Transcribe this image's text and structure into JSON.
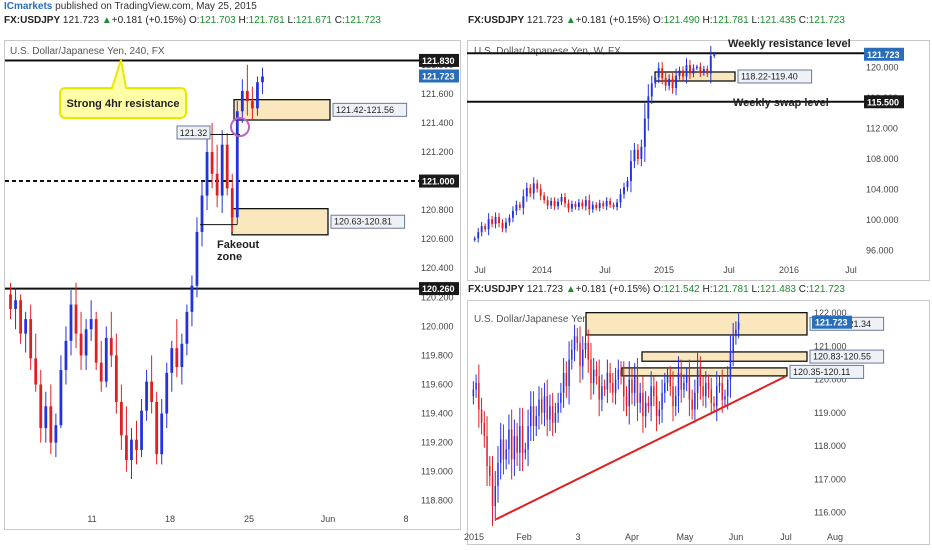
{
  "header": {
    "brand": "ICmarkets",
    "published": " published on TradingView.com, May 25, 2015"
  },
  "panels": {
    "h4": {
      "symbol": "FX:USDJPY",
      "last": "121.723",
      "change": "+0.181 (+0.15%)",
      "o_label": "O:",
      "o": "121.703",
      "h_label": "H:",
      "h": "121.781",
      "l_label": "L:",
      "l": "121.671",
      "c_label": "C:",
      "c": "121.723",
      "title": "U.S. Dollar/Japanese Yen, 240, FX"
    },
    "weekly": {
      "symbol": "FX:USDJPY",
      "last": "121.723",
      "change": "+0.181 (+0.15%)",
      "o_label": "O:",
      "o": "121.490",
      "h_label": "H:",
      "h": "121.781",
      "l_label": "L:",
      "l": "121.435",
      "c_label": "C:",
      "c": "121.723",
      "title": "U.S. Dollar/Japanese Yen, W, FX"
    },
    "daily": {
      "symbol": "FX:USDJPY",
      "last": "121.723",
      "change": "+0.181 (+0.15%)",
      "o_label": "O:",
      "o": "121.542",
      "h_label": "H:",
      "h": "121.781",
      "l_label": "L:",
      "l": "121.483",
      "c_label": "C:",
      "c": "121.723",
      "title": "U.S. Dollar/Japanese Yen, D, FX"
    }
  },
  "colors": {
    "bull": "#2233dd",
    "bear": "#e02020",
    "zone_fill": "#fbe7bd",
    "callout_fill": "#ffffa8",
    "callout_border": "#e8e800",
    "trendline": "#e02020",
    "last_price_badge": "#2a6ebb",
    "level_badge": "#1a1a1a"
  },
  "chart_data": [
    {
      "id": "h4",
      "type": "candlestick",
      "title": "U.S. Dollar/Japanese Yen, 240, FX",
      "ylim": [
        118.75,
        121.95
      ],
      "y_ticks": [
        "121.800",
        "121.600",
        "121.400",
        "121.200",
        "121.000",
        "120.800",
        "120.600",
        "120.400",
        "120.200",
        "120.000",
        "119.800",
        "119.600",
        "119.400",
        "119.200",
        "119.000",
        "118.800"
      ],
      "x_ticks": [
        "11",
        "18",
        "25",
        "Jun",
        "8"
      ],
      "price_badges": [
        {
          "label": "121.830",
          "value": 121.83,
          "kind": "level"
        },
        {
          "label": "121.723",
          "value": 121.723,
          "kind": "last"
        },
        {
          "label": "121.000",
          "value": 121.0,
          "kind": "level"
        },
        {
          "label": "120.260",
          "value": 120.26,
          "kind": "level"
        }
      ],
      "levels": [
        {
          "value": 121.83,
          "style": "solid"
        },
        {
          "value": 121.0,
          "style": "dashed"
        },
        {
          "value": 120.26,
          "style": "solid"
        }
      ],
      "zones": [
        {
          "label": "121.42-121.56",
          "low": 121.42,
          "high": 121.56
        },
        {
          "label": "120.63-120.81",
          "low": 120.63,
          "high": 120.81
        }
      ],
      "annotations": {
        "callout": "Strong 4hr resistance",
        "fakeout_line1": "Fakeout",
        "fakeout_line2": "zone",
        "price_tag": "121.32"
      },
      "series": {
        "candles_ohlc": [
          [
            120.22,
            120.3,
            120.05,
            120.12
          ],
          [
            120.12,
            120.26,
            119.98,
            120.18
          ],
          [
            120.18,
            120.22,
            119.88,
            119.95
          ],
          [
            119.95,
            120.1,
            119.82,
            120.05
          ],
          [
            120.05,
            120.15,
            119.7,
            119.78
          ],
          [
            119.78,
            119.95,
            119.55,
            119.6
          ],
          [
            119.6,
            119.7,
            119.2,
            119.3
          ],
          [
            119.3,
            119.55,
            119.2,
            119.45
          ],
          [
            119.45,
            119.6,
            119.12,
            119.2
          ],
          [
            119.2,
            119.4,
            119.1,
            119.32
          ],
          [
            119.32,
            119.8,
            119.3,
            119.7
          ],
          [
            119.7,
            120.0,
            119.6,
            119.9
          ],
          [
            119.9,
            120.25,
            119.8,
            120.15
          ],
          [
            120.15,
            120.3,
            119.85,
            119.95
          ],
          [
            119.95,
            120.1,
            119.7,
            119.8
          ],
          [
            119.8,
            120.05,
            119.7,
            119.98
          ],
          [
            119.98,
            120.18,
            119.9,
            120.05
          ],
          [
            120.05,
            120.1,
            119.7,
            119.75
          ],
          [
            119.75,
            119.9,
            119.55,
            119.62
          ],
          [
            119.62,
            120.0,
            119.58,
            119.92
          ],
          [
            119.92,
            120.1,
            119.72,
            119.8
          ],
          [
            119.8,
            119.95,
            119.4,
            119.48
          ],
          [
            119.48,
            119.6,
            119.15,
            119.25
          ],
          [
            119.25,
            119.45,
            119.0,
            119.08
          ],
          [
            119.08,
            119.3,
            118.95,
            119.22
          ],
          [
            119.22,
            119.35,
            119.05,
            119.15
          ],
          [
            119.15,
            119.5,
            119.1,
            119.42
          ],
          [
            119.42,
            119.7,
            119.35,
            119.62
          ],
          [
            119.62,
            119.8,
            119.4,
            119.48
          ],
          [
            119.48,
            119.55,
            119.05,
            119.12
          ],
          [
            119.12,
            119.5,
            119.05,
            119.4
          ],
          [
            119.4,
            119.75,
            119.3,
            119.68
          ],
          [
            119.68,
            119.9,
            119.55,
            119.85
          ],
          [
            119.85,
            120.05,
            119.65,
            119.72
          ],
          [
            119.72,
            119.95,
            119.6,
            119.88
          ],
          [
            119.88,
            120.15,
            119.8,
            120.1
          ],
          [
            120.1,
            120.35,
            120.0,
            120.28
          ],
          [
            120.28,
            120.75,
            120.2,
            120.65
          ],
          [
            120.65,
            121.0,
            120.55,
            120.9
          ],
          [
            120.9,
            121.3,
            120.8,
            121.2
          ],
          [
            121.2,
            121.4,
            120.95,
            121.05
          ],
          [
            121.05,
            121.25,
            120.82,
            120.9
          ],
          [
            120.9,
            121.35,
            120.78,
            121.25
          ],
          [
            121.25,
            121.33,
            120.9,
            120.95
          ],
          [
            120.95,
            121.05,
            120.65,
            120.75
          ],
          [
            120.75,
            121.55,
            120.7,
            121.48
          ],
          [
            121.48,
            121.7,
            121.4,
            121.62
          ],
          [
            121.62,
            121.8,
            121.45,
            121.55
          ],
          [
            121.55,
            121.65,
            121.42,
            121.5
          ],
          [
            121.5,
            121.72,
            121.45,
            121.68
          ],
          [
            121.68,
            121.78,
            121.6,
            121.72
          ]
        ]
      }
    },
    {
      "id": "weekly",
      "type": "candlestick",
      "title": "U.S. Dollar/Japanese Yen, W, FX",
      "ylim": [
        94.5,
        123.2
      ],
      "y_ticks": [
        "120.000",
        "116.000",
        "112.000",
        "108.000",
        "104.000",
        "100.000",
        "96.000"
      ],
      "x_ticks": [
        "Jul",
        "2014",
        "Jul",
        "2015",
        "Jul",
        "2016",
        "Jul"
      ],
      "price_badges": [
        {
          "label": "121.723",
          "value": 121.723,
          "kind": "last"
        },
        {
          "label": "115.500",
          "value": 115.5,
          "kind": "level"
        }
      ],
      "levels": [
        {
          "value": 121.85,
          "style": "solid",
          "label": "Weekly resistance level"
        },
        {
          "value": 115.5,
          "style": "solid",
          "label": "Weekly swap level"
        }
      ],
      "zones": [
        {
          "label": "118.22-119.40",
          "low": 118.22,
          "high": 119.4
        }
      ],
      "series": {
        "closes": [
          97.6,
          98.4,
          99.2,
          98.8,
          100.1,
          99.5,
          100.4,
          99.6,
          98.9,
          99.7,
          100.3,
          101.2,
          102.0,
          101.6,
          103.1,
          104.2,
          103.5,
          104.8,
          104.1,
          103.2,
          102.6,
          101.9,
          102.5,
          101.8,
          102.4,
          103.0,
          102.2,
          101.5,
          102.1,
          101.7,
          102.3,
          101.8,
          102.6,
          101.4,
          102.0,
          101.6,
          102.2,
          101.8,
          102.5,
          102.0,
          101.7,
          102.3,
          103.4,
          104.3,
          105.1,
          107.7,
          109.2,
          108.0,
          109.6,
          113.3,
          116.2,
          117.9,
          118.7,
          119.9,
          118.6,
          117.6,
          118.5,
          117.3,
          118.9,
          119.6,
          118.8,
          120.3,
          119.2,
          119.9,
          120.1,
          119.3,
          119.8,
          119.2,
          121.5,
          121.72
        ]
      }
    },
    {
      "id": "daily",
      "type": "candlestick",
      "title": "U.S. Dollar/Japanese Yen, D, FX",
      "ylim": [
        115.6,
        122.3
      ],
      "y_ticks": [
        "122.000",
        "121.000",
        "120.000",
        "119.000",
        "118.000",
        "117.000",
        "116.000"
      ],
      "x_ticks": [
        "2015",
        "Feb",
        "3",
        "Apr",
        "May",
        "Jun",
        "Jul",
        "Aug"
      ],
      "price_badges": [
        {
          "label": "121.723",
          "value": 121.723,
          "kind": "last"
        }
      ],
      "zones": [
        {
          "label": "122.01-121.34",
          "low": 121.34,
          "high": 122.01
        },
        {
          "label": "120.83-120.55",
          "low": 120.55,
          "high": 120.83
        },
        {
          "label": "120.35-120.11",
          "low": 120.11,
          "high": 120.35
        }
      ],
      "trendline": {
        "from": {
          "x": "mid-Jan",
          "y": 115.8
        },
        "to": {
          "x": "Jul",
          "y": 120.1
        }
      },
      "series": {
        "closes": [
          119.7,
          119.9,
          119.1,
          118.7,
          118.3,
          117.4,
          117.1,
          116.2,
          116.8,
          117.5,
          118.2,
          117.6,
          117.9,
          118.5,
          117.6,
          118.3,
          117.8,
          118.6,
          117.8,
          117.9,
          118.6,
          119.2,
          118.6,
          118.9,
          119.4,
          119.0,
          119.5,
          118.8,
          119.2,
          118.7,
          119.0,
          119.3,
          119.6,
          120.2,
          119.8,
          120.6,
          120.9,
          121.3,
          121.1,
          120.4,
          120.9,
          121.1,
          120.6,
          119.9,
          120.3,
          120.1,
          119.4,
          119.8,
          119.7,
          120.2,
          119.9,
          119.6,
          120.0,
          120.3,
          120.1,
          119.5,
          119.2,
          120.0,
          119.6,
          120.1,
          119.3,
          119.6,
          118.9,
          119.3,
          119.2,
          119.8,
          119.5,
          118.9,
          119.1,
          119.6,
          119.9,
          120.1,
          119.8,
          119.2,
          119.5,
          120.2,
          119.7,
          119.9,
          120.1,
          119.4,
          119.1,
          119.6,
          120.3,
          119.8,
          119.5,
          119.9,
          119.7,
          119.3,
          119.2,
          119.8,
          119.9,
          119.4,
          119.5,
          120.0,
          120.8,
          121.3,
          121.5,
          121.72
        ]
      }
    }
  ]
}
